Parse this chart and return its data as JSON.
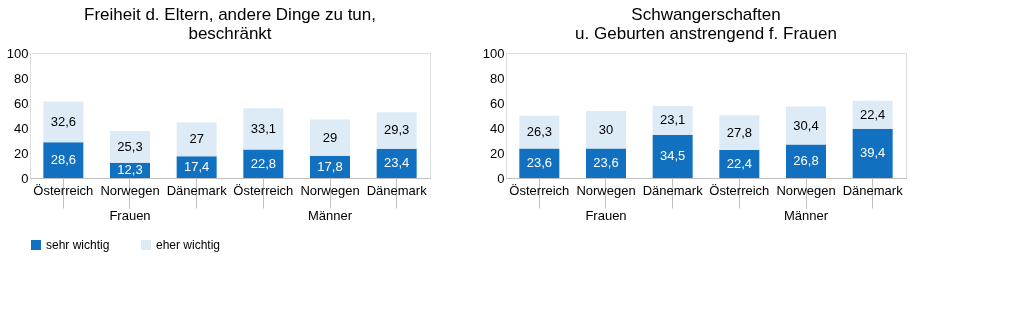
{
  "chart_data": [
    {
      "type": "bar",
      "stacked": true,
      "title": "Freiheit d. Eltern, andere Dinge zu tun,\nbeschränkt",
      "categories": [
        "Österreich",
        "Norwegen",
        "Dänemark",
        "Österreich",
        "Norwegen",
        "Dänemark"
      ],
      "series": [
        {
          "name": "sehr wichtig",
          "color": "#1170c0",
          "values": [
            28.6,
            12.3,
            17.4,
            22.8,
            17.8,
            23.4
          ],
          "value_labels": [
            "28,6",
            "12,3",
            "17,4",
            "22,8",
            "17,8",
            "23,4"
          ]
        },
        {
          "name": "eher wichtig",
          "color": "#ddebf7",
          "values": [
            32.6,
            25.3,
            27,
            33.1,
            29,
            29.3
          ],
          "value_labels": [
            "32,6",
            "25,3",
            "27",
            "33,1",
            "29",
            "29,3"
          ]
        }
      ],
      "ylim": [
        0,
        100
      ],
      "yticks": [
        0,
        20,
        40,
        60,
        80,
        100
      ],
      "grid": false,
      "legend": "bottom",
      "annotations": [
        "Frauen",
        "Männer"
      ]
    },
    {
      "type": "bar",
      "stacked": true,
      "title": "Schwangerschaften\nu. Geburten anstrengend f. Frauen",
      "categories": [
        "Österreich",
        "Norwegen",
        "Dänemark",
        "Österreich",
        "Norwegen",
        "Dänemark"
      ],
      "series": [
        {
          "name": "sehr wichtig",
          "color": "#1170c0",
          "values": [
            23.6,
            23.6,
            34.5,
            22.4,
            26.8,
            39.4
          ],
          "value_labels": [
            "23,6",
            "23,6",
            "34,5",
            "22,4",
            "26,8",
            "39,4"
          ]
        },
        {
          "name": "eher wichtig",
          "color": "#ddebf7",
          "values": [
            26.3,
            30,
            23.1,
            27.8,
            30.4,
            22.4
          ],
          "value_labels": [
            "26,3",
            "30",
            "23,1",
            "27,8",
            "30,4",
            "22,4"
          ]
        }
      ],
      "ylim": [
        0,
        100
      ],
      "yticks": [
        0,
        20,
        40,
        60,
        80,
        100
      ],
      "grid": false,
      "legend": "bottom",
      "annotations": [
        "Frauen",
        "Männer"
      ]
    }
  ]
}
